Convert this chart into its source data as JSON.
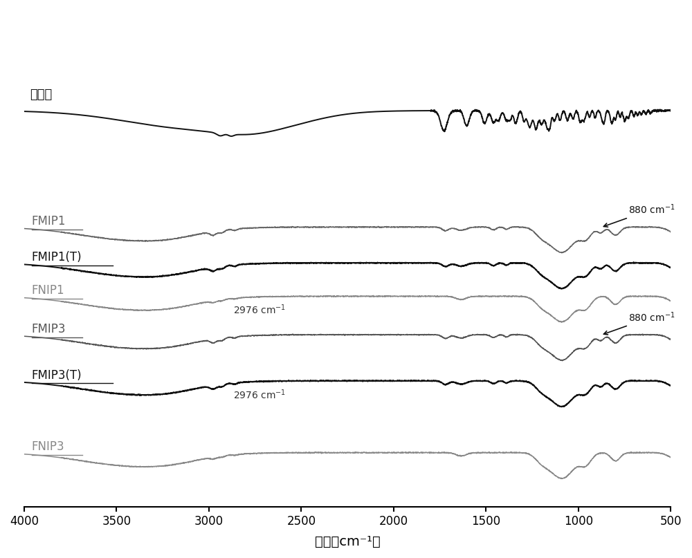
{
  "title": "",
  "xlabel": "波数（cm⁻¹）",
  "ylabel": "",
  "xlim": [
    4000,
    500
  ],
  "background_color": "#ffffff",
  "text_color": "#000000",
  "series_labels": [
    "萍普生",
    "FMIP1",
    "FMIP1(T)",
    "FNIP1",
    "FMIP3",
    "FMIP3(T)",
    "FNIP3"
  ],
  "series_colors": [
    "#111111",
    "#666666",
    "#111111",
    "#888888",
    "#555555",
    "#111111",
    "#888888"
  ],
  "series_linewidths": [
    1.4,
    1.1,
    1.4,
    1.1,
    1.1,
    1.4,
    1.1
  ],
  "offsets": [
    7.5,
    5.2,
    4.5,
    3.85,
    3.1,
    2.2,
    0.8
  ],
  "scale": 0.7
}
